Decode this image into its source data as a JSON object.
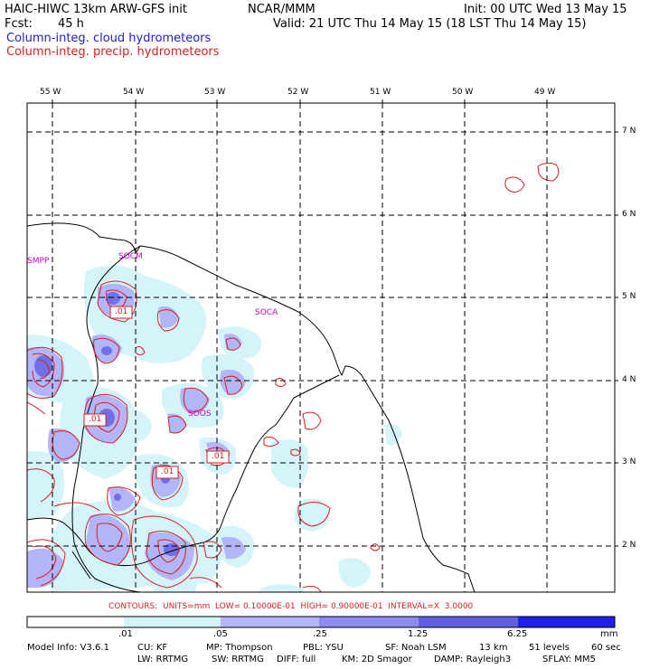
{
  "header": {
    "model": "HAIC-HIWC 13km ARW-GFS init",
    "center": "NCAR/MMM",
    "init": "Init: 00 UTC Wed 13 May 15",
    "fcst_label": "Fcst:",
    "fcst_value": "45 h",
    "valid": "Valid: 21 UTC Thu 14 May 15 (18 LST Thu 14 May 15)",
    "field1": "Column-integ. cloud hydrometeors",
    "field2": "Column-integ. precip. hydrometeors"
  },
  "colors": {
    "field1": "#1c1ccc",
    "field2": "#d62020",
    "stations": "#cc00cc",
    "contour": "#d62020"
  },
  "map": {
    "lon_labels": [
      "55 W",
      "54 W",
      "53 W",
      "52 W",
      "51 W",
      "50 W",
      "49 W"
    ],
    "lat_labels": [
      "7 N",
      "6 N",
      "5 N",
      "4 N",
      "3 N",
      "2 N"
    ],
    "stations": [
      "SMPP",
      "SOCM",
      "SOCA",
      "SOOS"
    ],
    "contour_labels": [
      ".01",
      ".01",
      ".01",
      ".01"
    ]
  },
  "contours_info": "CONTOURS:  UNITS=mm  LOW= 0.10000E-01  HIGH= 0.90000E-01  INTERVAL=X  3.0000",
  "colorbar": {
    "labels": [
      ".01",
      ".05",
      ".25",
      "1.25",
      "6.25"
    ],
    "unit": "mm",
    "colors": [
      "#ffffff",
      "#d4f4fa",
      "#b4b4f8",
      "#8c8cf0",
      "#6060e0",
      "#2020e8"
    ]
  },
  "model_info": {
    "line1": [
      "Model Info: V3.6.1",
      "CU: KF",
      "MP: Thompson",
      "PBL: YSU",
      "SF: Noah LSM",
      "13 km",
      "51 levels",
      "60 sec"
    ],
    "line2": [
      "LW: RRTMG",
      "SW: RRTMG",
      "DIFF: full",
      "KM: 2D Smagor",
      "DAMP: Rayleigh3",
      "SFLAY: MM5"
    ]
  }
}
